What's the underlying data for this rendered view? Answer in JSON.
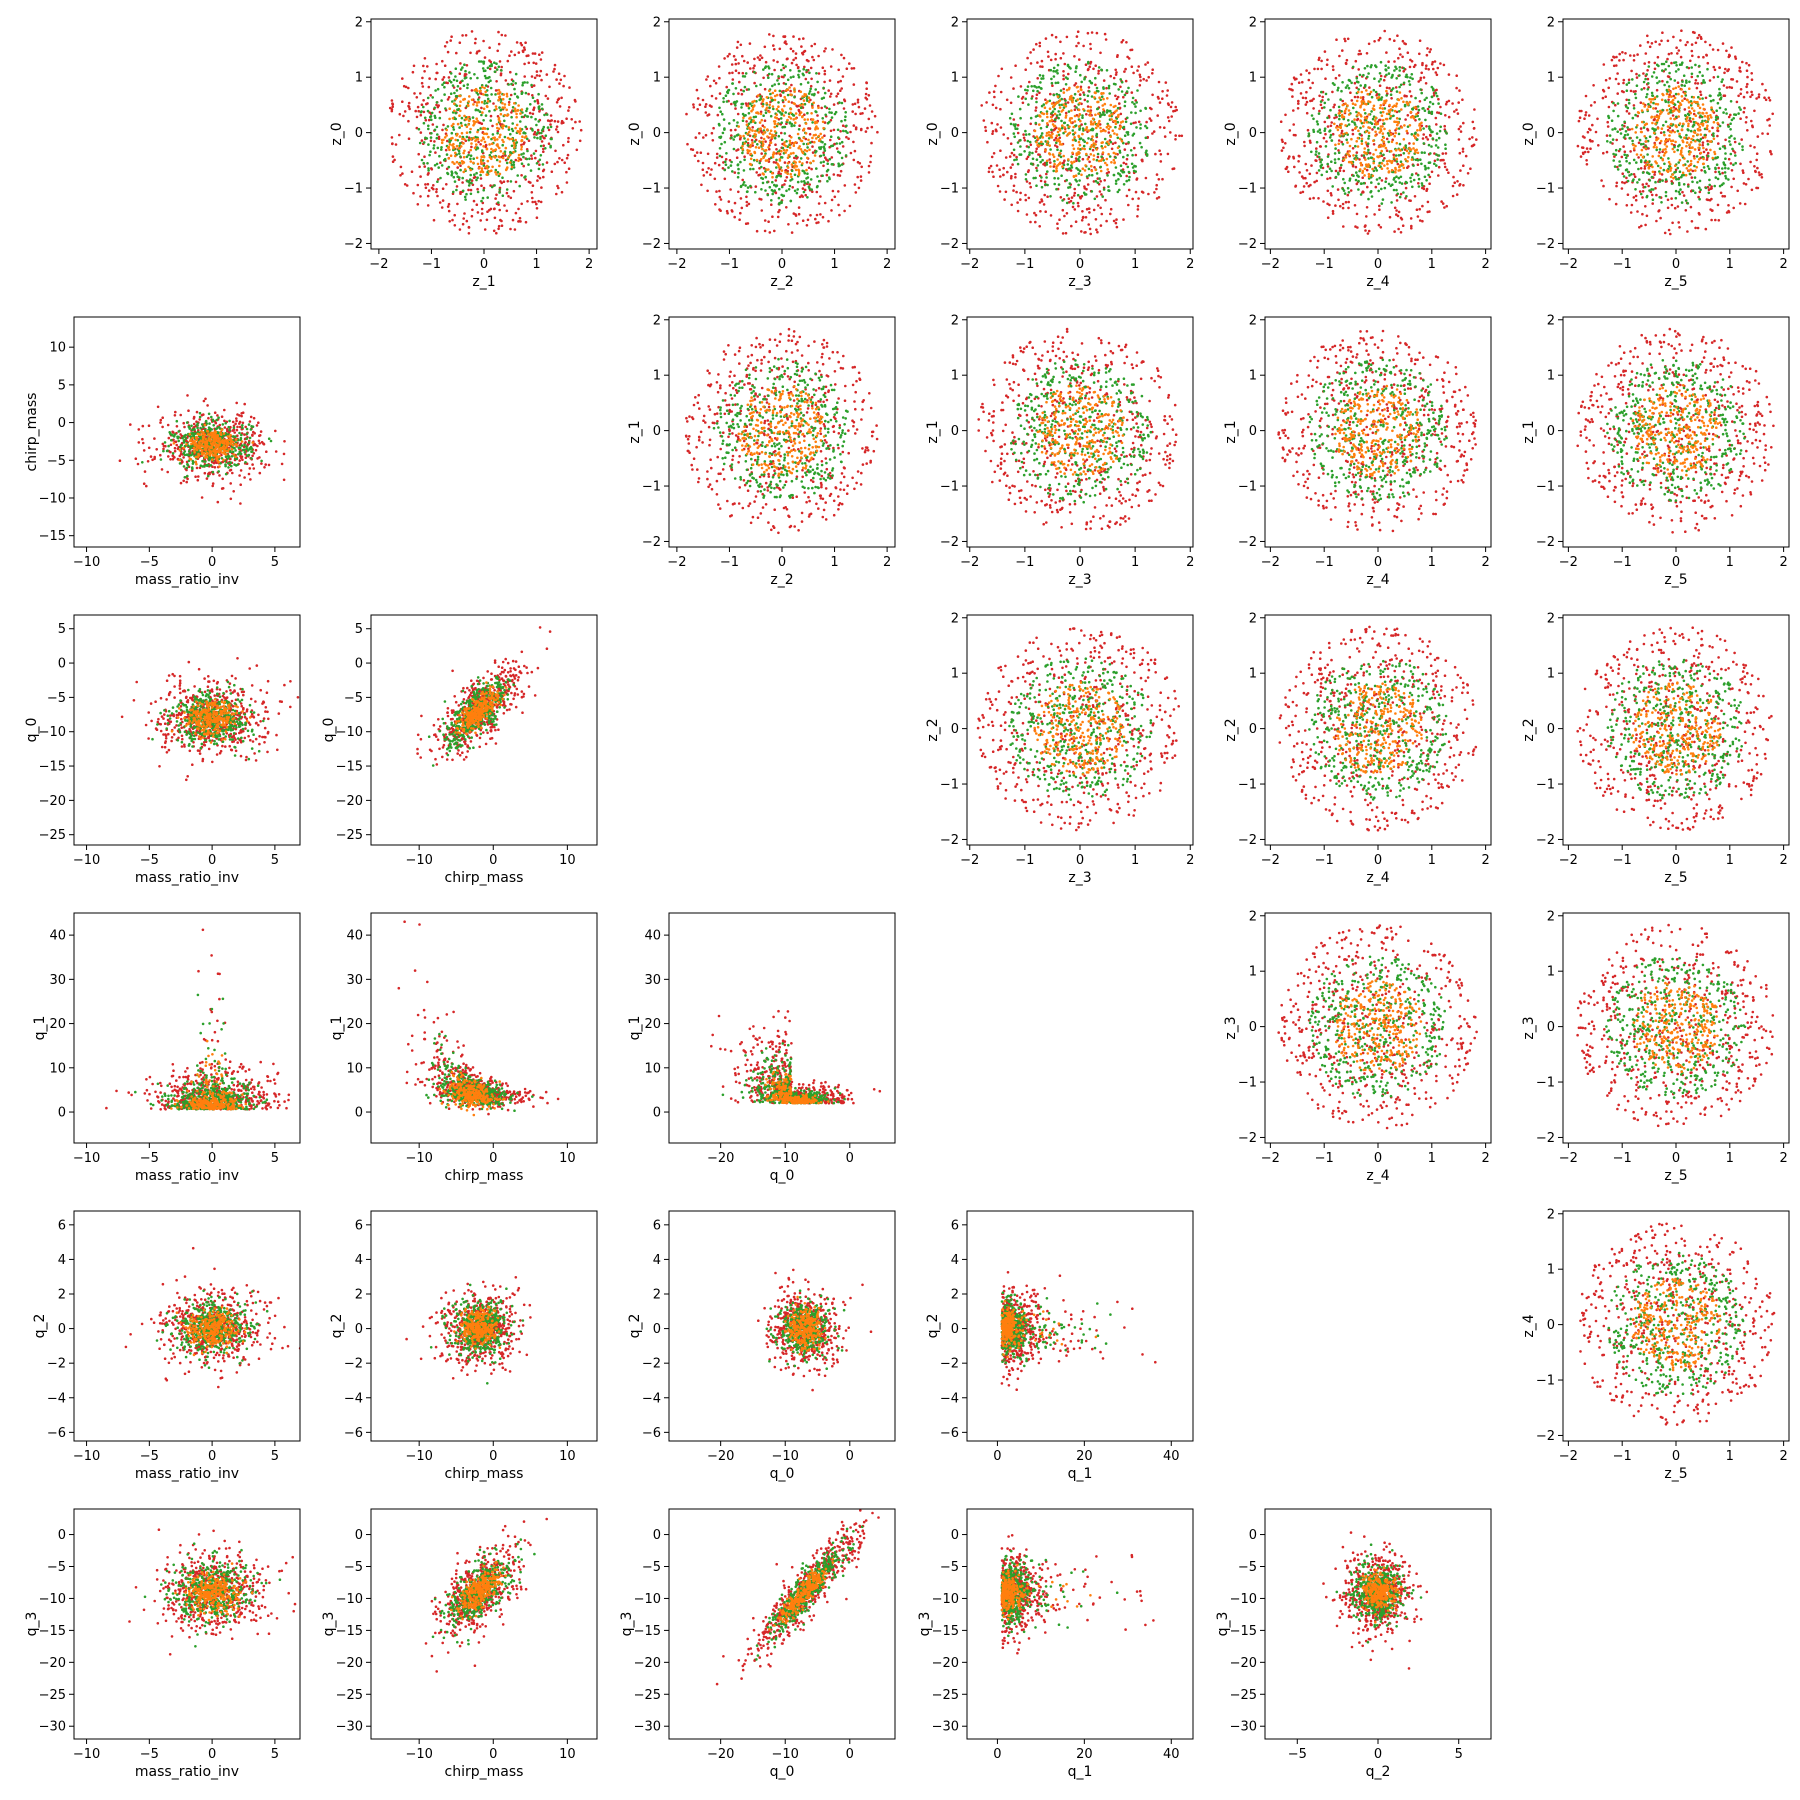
{
  "figure": {
    "type": "scatter-matrix",
    "series_colors": [
      "#d62728",
      "#2ca02c",
      "#ff7f0e"
    ]
  },
  "chart_data": [
    {
      "type": "scatter",
      "x_label": "z_1",
      "y_label": "z_0",
      "x_ticks": [
        -2,
        -1,
        0,
        1,
        2
      ],
      "y_ticks": [
        -2,
        -1,
        0,
        1,
        2
      ],
      "xlim": [
        -2.15,
        2.15
      ],
      "ylim": [
        -2.1,
        2.05
      ],
      "point_cloud": {
        "shape": "disk",
        "center": [
          0,
          0
        ],
        "spread": [
          1.85,
          1.85
        ]
      }
    },
    {
      "type": "scatter",
      "x_label": "z_2",
      "y_label": "z_0",
      "x_ticks": [
        -2,
        -1,
        0,
        1,
        2
      ],
      "y_ticks": [
        -2,
        -1,
        0,
        1,
        2
      ],
      "xlim": [
        -2.15,
        2.15
      ],
      "ylim": [
        -2.1,
        2.05
      ],
      "point_cloud": {
        "shape": "disk",
        "center": [
          0,
          0
        ],
        "spread": [
          1.85,
          1.85
        ]
      }
    },
    {
      "type": "scatter",
      "x_label": "z_3",
      "y_label": "z_0",
      "x_ticks": [
        -2,
        -1,
        0,
        1,
        2
      ],
      "y_ticks": [
        -2,
        -1,
        0,
        1,
        2
      ],
      "xlim": [
        -2.05,
        2.05
      ],
      "ylim": [
        -2.1,
        2.05
      ],
      "point_cloud": {
        "shape": "disk",
        "center": [
          0,
          0
        ],
        "spread": [
          1.85,
          1.85
        ]
      }
    },
    {
      "type": "scatter",
      "x_label": "z_4",
      "y_label": "z_0",
      "x_ticks": [
        -2,
        -1,
        0,
        1,
        2
      ],
      "y_ticks": [
        -2,
        -1,
        0,
        1,
        2
      ],
      "xlim": [
        -2.1,
        2.1
      ],
      "ylim": [
        -2.1,
        2.05
      ],
      "point_cloud": {
        "shape": "disk",
        "center": [
          0,
          0
        ],
        "spread": [
          1.85,
          1.85
        ]
      }
    },
    {
      "type": "scatter",
      "x_label": "z_5",
      "y_label": "z_0",
      "x_ticks": [
        -2,
        -1,
        0,
        1,
        2
      ],
      "y_ticks": [
        -2,
        -1,
        0,
        1,
        2
      ],
      "xlim": [
        -2.1,
        2.1
      ],
      "ylim": [
        -2.1,
        2.05
      ],
      "point_cloud": {
        "shape": "disk",
        "center": [
          0,
          0
        ],
        "spread": [
          1.85,
          1.85
        ]
      }
    },
    {
      "type": "scatter",
      "x_label": "mass_ratio_inv",
      "y_label": "chirp_mass",
      "x_ticks": [
        -10,
        -5,
        0,
        5
      ],
      "y_ticks": [
        -15,
        -10,
        -5,
        0,
        5,
        10
      ],
      "xlim": [
        -11,
        7
      ],
      "ylim": [
        -16.5,
        14
      ],
      "point_cloud": {
        "shape": "blob",
        "center": [
          0,
          -3
        ],
        "spread": [
          4,
          4
        ]
      }
    },
    {
      "type": "scatter",
      "x_label": "z_2",
      "y_label": "z_1",
      "x_ticks": [
        -2,
        -1,
        0,
        1,
        2
      ],
      "y_ticks": [
        -2,
        -1,
        0,
        1,
        2
      ],
      "xlim": [
        -2.15,
        2.15
      ],
      "ylim": [
        -2.1,
        2.05
      ],
      "point_cloud": {
        "shape": "disk",
        "center": [
          0,
          0
        ],
        "spread": [
          1.85,
          1.85
        ]
      }
    },
    {
      "type": "scatter",
      "x_label": "z_3",
      "y_label": "z_1",
      "x_ticks": [
        -2,
        -1,
        0,
        1,
        2
      ],
      "y_ticks": [
        -2,
        -1,
        0,
        1,
        2
      ],
      "xlim": [
        -2.05,
        2.05
      ],
      "ylim": [
        -2.1,
        2.05
      ],
      "point_cloud": {
        "shape": "disk",
        "center": [
          0,
          0
        ],
        "spread": [
          1.85,
          1.85
        ]
      }
    },
    {
      "type": "scatter",
      "x_label": "z_4",
      "y_label": "z_1",
      "x_ticks": [
        -2,
        -1,
        0,
        1,
        2
      ],
      "y_ticks": [
        -2,
        -1,
        0,
        1,
        2
      ],
      "xlim": [
        -2.1,
        2.1
      ],
      "ylim": [
        -2.1,
        2.05
      ],
      "point_cloud": {
        "shape": "disk",
        "center": [
          0,
          0
        ],
        "spread": [
          1.85,
          1.85
        ]
      }
    },
    {
      "type": "scatter",
      "x_label": "z_5",
      "y_label": "z_1",
      "x_ticks": [
        -2,
        -1,
        0,
        1,
        2
      ],
      "y_ticks": [
        -2,
        -1,
        0,
        1,
        2
      ],
      "xlim": [
        -2.1,
        2.1
      ],
      "ylim": [
        -2.1,
        2.05
      ],
      "point_cloud": {
        "shape": "disk",
        "center": [
          0,
          0
        ],
        "spread": [
          1.85,
          1.85
        ]
      }
    },
    {
      "type": "scatter",
      "x_label": "mass_ratio_inv",
      "y_label": "q_0",
      "x_ticks": [
        -10,
        -5,
        0,
        5
      ],
      "y_ticks": [
        -25,
        -20,
        -15,
        -10,
        -5,
        0,
        5
      ],
      "xlim": [
        -11,
        7
      ],
      "ylim": [
        -26.5,
        7
      ],
      "point_cloud": {
        "shape": "blob",
        "center": [
          0,
          -8
        ],
        "spread": [
          4,
          5
        ]
      }
    },
    {
      "type": "scatter",
      "x_label": "chirp_mass",
      "y_label": "q_0",
      "x_ticks": [
        -10,
        0,
        10
      ],
      "y_ticks": [
        -25,
        -20,
        -15,
        -10,
        -5,
        0,
        5
      ],
      "xlim": [
        -16.5,
        14
      ],
      "ylim": [
        -26.5,
        7
      ],
      "point_cloud": {
        "shape": "correlated",
        "center": [
          -2,
          -7
        ],
        "spread": [
          5,
          5
        ],
        "slope": 0.8
      }
    },
    {
      "type": "scatter",
      "x_label": "z_3",
      "y_label": "z_2",
      "x_ticks": [
        -2,
        -1,
        0,
        1,
        2
      ],
      "y_ticks": [
        -2,
        -1,
        0,
        1,
        2
      ],
      "xlim": [
        -2.05,
        2.05
      ],
      "ylim": [
        -2.1,
        2.05
      ],
      "point_cloud": {
        "shape": "disk",
        "center": [
          0,
          0
        ],
        "spread": [
          1.85,
          1.85
        ]
      }
    },
    {
      "type": "scatter",
      "x_label": "z_4",
      "y_label": "z_2",
      "x_ticks": [
        -2,
        -1,
        0,
        1,
        2
      ],
      "y_ticks": [
        -2,
        -1,
        0,
        1,
        2
      ],
      "xlim": [
        -2.1,
        2.1
      ],
      "ylim": [
        -2.1,
        2.05
      ],
      "point_cloud": {
        "shape": "disk",
        "center": [
          0,
          0
        ],
        "spread": [
          1.85,
          1.85
        ]
      }
    },
    {
      "type": "scatter",
      "x_label": "z_5",
      "y_label": "z_2",
      "x_ticks": [
        -2,
        -1,
        0,
        1,
        2
      ],
      "y_ticks": [
        -2,
        -1,
        0,
        1,
        2
      ],
      "xlim": [
        -2.1,
        2.1
      ],
      "ylim": [
        -2.1,
        2.05
      ],
      "point_cloud": {
        "shape": "disk",
        "center": [
          0,
          0
        ],
        "spread": [
          1.85,
          1.85
        ]
      }
    },
    {
      "type": "scatter",
      "x_label": "mass_ratio_inv",
      "y_label": "q_1",
      "x_ticks": [
        -10,
        -5,
        0,
        5
      ],
      "y_ticks": [
        0,
        10,
        20,
        30,
        40
      ],
      "xlim": [
        -11,
        7
      ],
      "ylim": [
        -7,
        45
      ],
      "point_cloud": {
        "shape": "spike",
        "center": [
          0,
          3
        ],
        "spread": [
          4,
          4
        ]
      }
    },
    {
      "type": "scatter",
      "x_label": "chirp_mass",
      "y_label": "q_1",
      "x_ticks": [
        -10,
        0,
        10
      ],
      "y_ticks": [
        0,
        10,
        20,
        30,
        40
      ],
      "xlim": [
        -16.5,
        14
      ],
      "ylim": [
        -7,
        45
      ],
      "point_cloud": {
        "shape": "decay",
        "center": [
          -3,
          3
        ],
        "spread": [
          5,
          3
        ]
      }
    },
    {
      "type": "scatter",
      "x_label": "q_0",
      "y_label": "q_1",
      "x_ticks": [
        -20,
        -10,
        0
      ],
      "y_ticks": [
        0,
        10,
        20,
        30,
        40
      ],
      "xlim": [
        -28,
        7
      ],
      "ylim": [
        -7,
        45
      ],
      "point_cloud": {
        "shape": "elbow",
        "center": [
          -9,
          3
        ],
        "spread": [
          6,
          3
        ]
      }
    },
    {
      "type": "scatter",
      "x_label": "z_4",
      "y_label": "z_3",
      "x_ticks": [
        -2,
        -1,
        0,
        1,
        2
      ],
      "y_ticks": [
        -2,
        -1,
        0,
        1,
        2
      ],
      "xlim": [
        -2.1,
        2.1
      ],
      "ylim": [
        -2.1,
        2.05
      ],
      "point_cloud": {
        "shape": "disk",
        "center": [
          0,
          0
        ],
        "spread": [
          1.85,
          1.85
        ]
      }
    },
    {
      "type": "scatter",
      "x_label": "z_5",
      "y_label": "z_3",
      "x_ticks": [
        -2,
        -1,
        0,
        1,
        2
      ],
      "y_ticks": [
        -2,
        -1,
        0,
        1,
        2
      ],
      "xlim": [
        -2.1,
        2.1
      ],
      "ylim": [
        -2.1,
        2.05
      ],
      "point_cloud": {
        "shape": "disk",
        "center": [
          0,
          0
        ],
        "spread": [
          1.85,
          1.85
        ]
      }
    },
    {
      "type": "scatter",
      "x_label": "mass_ratio_inv",
      "y_label": "q_2",
      "x_ticks": [
        -10,
        -5,
        0,
        5
      ],
      "y_ticks": [
        -6,
        -4,
        -2,
        0,
        2,
        4,
        6
      ],
      "xlim": [
        -11,
        7
      ],
      "ylim": [
        -6.5,
        6.8
      ],
      "point_cloud": {
        "shape": "blob",
        "center": [
          0,
          0
        ],
        "spread": [
          4,
          2
        ]
      }
    },
    {
      "type": "scatter",
      "x_label": "chirp_mass",
      "y_label": "q_2",
      "x_ticks": [
        -10,
        0,
        10
      ],
      "y_ticks": [
        -6,
        -4,
        -2,
        0,
        2,
        4,
        6
      ],
      "xlim": [
        -16.5,
        14
      ],
      "ylim": [
        -6.5,
        6.8
      ],
      "point_cloud": {
        "shape": "blob",
        "center": [
          -2,
          0
        ],
        "spread": [
          5,
          2
        ]
      }
    },
    {
      "type": "scatter",
      "x_label": "q_0",
      "y_label": "q_2",
      "x_ticks": [
        -20,
        -10,
        0
      ],
      "y_ticks": [
        -6,
        -4,
        -2,
        0,
        2,
        4,
        6
      ],
      "xlim": [
        -28,
        7
      ],
      "ylim": [
        -6.5,
        6.8
      ],
      "point_cloud": {
        "shape": "blob",
        "center": [
          -7,
          0
        ],
        "spread": [
          5,
          2
        ]
      }
    },
    {
      "type": "scatter",
      "x_label": "q_1",
      "y_label": "q_2",
      "x_ticks": [
        0,
        20,
        40
      ],
      "y_ticks": [
        -6,
        -4,
        -2,
        0,
        2,
        4,
        6
      ],
      "xlim": [
        -7,
        45
      ],
      "ylim": [
        -6.5,
        6.8
      ],
      "point_cloud": {
        "shape": "fan",
        "center": [
          1,
          0
        ],
        "spread": [
          4,
          2
        ]
      }
    },
    {
      "type": "scatter",
      "x_label": "z_5",
      "y_label": "z_4",
      "x_ticks": [
        -2,
        -1,
        0,
        1,
        2
      ],
      "y_ticks": [
        -2,
        -1,
        0,
        1,
        2
      ],
      "xlim": [
        -2.1,
        2.1
      ],
      "ylim": [
        -2.1,
        2.05
      ],
      "point_cloud": {
        "shape": "disk",
        "center": [
          0,
          0
        ],
        "spread": [
          1.85,
          1.85
        ]
      }
    },
    {
      "type": "scatter",
      "x_label": "mass_ratio_inv",
      "y_label": "q_3",
      "x_ticks": [
        -10,
        -5,
        0,
        5
      ],
      "y_ticks": [
        -30,
        -25,
        -20,
        -15,
        -10,
        -5,
        0
      ],
      "xlim": [
        -11,
        7
      ],
      "ylim": [
        -32,
        4
      ],
      "point_cloud": {
        "shape": "blob",
        "center": [
          0,
          -9
        ],
        "spread": [
          4,
          6
        ]
      }
    },
    {
      "type": "scatter",
      "x_label": "chirp_mass",
      "y_label": "q_3",
      "x_ticks": [
        -10,
        0,
        10
      ],
      "y_ticks": [
        -30,
        -25,
        -20,
        -15,
        -10,
        -5,
        0
      ],
      "xlim": [
        -16.5,
        14
      ],
      "ylim": [
        -32,
        4
      ],
      "point_cloud": {
        "shape": "correlated",
        "center": [
          -2,
          -9
        ],
        "spread": [
          5,
          6
        ],
        "slope": 0.8
      }
    },
    {
      "type": "scatter",
      "x_label": "q_0",
      "y_label": "q_3",
      "x_ticks": [
        -20,
        -10,
        0
      ],
      "y_ticks": [
        -30,
        -25,
        -20,
        -15,
        -10,
        -5,
        0
      ],
      "xlim": [
        -28,
        7
      ],
      "ylim": [
        -32,
        4
      ],
      "point_cloud": {
        "shape": "band",
        "center": [
          -7,
          -9
        ],
        "spread": [
          6,
          6
        ],
        "slope": 1.1
      }
    },
    {
      "type": "scatter",
      "x_label": "q_1",
      "y_label": "q_3",
      "x_ticks": [
        0,
        20,
        40
      ],
      "y_ticks": [
        -30,
        -25,
        -20,
        -15,
        -10,
        -5,
        0
      ],
      "xlim": [
        -7,
        45
      ],
      "ylim": [
        -32,
        4
      ],
      "point_cloud": {
        "shape": "fan",
        "center": [
          1,
          -9
        ],
        "spread": [
          4,
          6
        ]
      }
    },
    {
      "type": "scatter",
      "x_label": "q_2",
      "y_label": "q_3",
      "x_ticks": [
        -5,
        0,
        5
      ],
      "y_ticks": [
        -30,
        -25,
        -20,
        -15,
        -10,
        -5,
        0
      ],
      "xlim": [
        -7,
        7
      ],
      "ylim": [
        -32,
        4
      ],
      "point_cloud": {
        "shape": "blob",
        "center": [
          0,
          -9
        ],
        "spread": [
          2,
          6
        ]
      }
    }
  ]
}
